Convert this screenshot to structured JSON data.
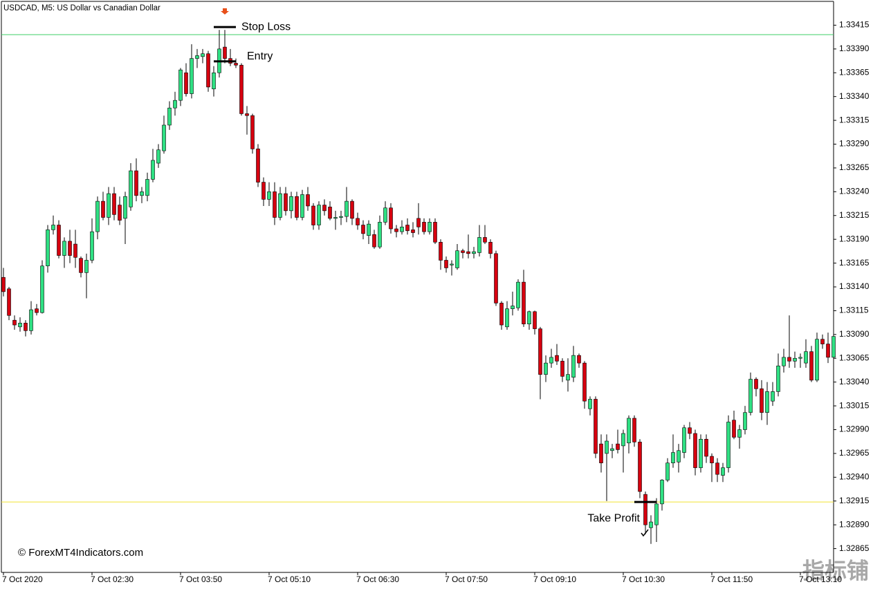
{
  "chart_data": {
    "type": "candlestick",
    "title": "USDCAD, M5:  US Dollar vs Canadian Dollar",
    "watermark": "© ForexMT4Indicators.com",
    "corner_mark": "指标铺",
    "up_color": "#2fe083",
    "down_color": "#d6000f",
    "ylim": [
      1.3284,
      1.3344
    ],
    "yticks": [
      1.32865,
      {
        "value": 1.3289,
        "label": "1.32890"
      },
      1.32915,
      {
        "value": 1.3294,
        "label": "1.32940"
      },
      1.32965,
      {
        "value": 1.3299,
        "label": "1.32990"
      },
      1.33015,
      {
        "value": 1.3304,
        "label": "1.33040"
      },
      1.33065,
      {
        "value": 1.3309,
        "label": "1.33090"
      },
      1.33115,
      {
        "value": 1.3314,
        "label": "1.33140"
      },
      1.33165,
      {
        "value": 1.3319,
        "label": "1.33190"
      },
      1.33215,
      {
        "value": 1.3324,
        "label": "1.33240"
      },
      1.33265,
      {
        "value": 1.3329,
        "label": "1.33290"
      },
      1.33315,
      {
        "value": 1.3334,
        "label": "1.33340"
      },
      1.33365,
      {
        "value": 1.3339,
        "label": "1.33390"
      },
      1.33415
    ],
    "categories": [
      "7 Oct 2020",
      null,
      null,
      null,
      null,
      null,
      null,
      null,
      null,
      null,
      null,
      null,
      null,
      null,
      null,
      null,
      "7 Oct 02:30",
      null,
      null,
      null,
      null,
      null,
      null,
      null,
      null,
      null,
      null,
      null,
      null,
      null,
      null,
      null,
      "7 Oct 03:50",
      null,
      null,
      null,
      null,
      null,
      null,
      null,
      null,
      null,
      null,
      null,
      null,
      null,
      null,
      null,
      "7 Oct 05:10",
      null,
      null,
      null,
      null,
      null,
      null,
      null,
      null,
      null,
      null,
      null,
      null,
      null,
      null,
      null,
      "7 Oct 06:30",
      null,
      null,
      null,
      null,
      null,
      null,
      null,
      null,
      null,
      null,
      null,
      null,
      null,
      null,
      null,
      "7 Oct 07:50",
      null,
      null,
      null,
      null,
      null,
      null,
      null,
      null,
      null,
      null,
      null,
      null,
      null,
      null,
      null,
      "7 Oct 09:10",
      null,
      null,
      null,
      null,
      null,
      null,
      null,
      null,
      null,
      null,
      null,
      null,
      null,
      null,
      null,
      "7 Oct 10:30",
      null,
      null,
      null,
      null,
      null,
      null,
      null,
      null,
      null,
      null,
      null,
      null,
      null,
      null,
      null,
      "7 Oct 11:50",
      null,
      null,
      null,
      null,
      null,
      null,
      null,
      null,
      null,
      null,
      null,
      null,
      null,
      null,
      null,
      "7 Oct 13:10",
      null,
      null,
      null,
      null,
      null,
      null
    ],
    "values": [
      [
        1.3315,
        1.3316,
        1.3313,
        1.33135
      ],
      [
        1.33138,
        1.3314,
        1.33105,
        1.3311
      ],
      [
        1.33105,
        1.3311,
        1.33095,
        1.331
      ],
      [
        1.33098,
        1.33108,
        1.33093,
        1.33102
      ],
      [
        1.33102,
        1.33105,
        1.33088,
        1.33094
      ],
      [
        1.33094,
        1.33125,
        1.3309,
        1.33116
      ],
      [
        1.33117,
        1.33122,
        1.3311,
        1.33113
      ],
      [
        1.33113,
        1.33168,
        1.33112,
        1.33162
      ],
      [
        1.33162,
        1.33205,
        1.33155,
        1.332
      ],
      [
        1.332,
        1.33215,
        1.33195,
        1.33205
      ],
      [
        1.33205,
        1.3321,
        1.3317,
        1.33173
      ],
      [
        1.33173,
        1.33192,
        1.3316,
        1.33188
      ],
      [
        1.33188,
        1.332,
        1.33165,
        1.33173
      ],
      [
        1.33185,
        1.332,
        1.3316,
        1.33171
      ],
      [
        1.3317,
        1.33172,
        1.3315,
        1.33155
      ],
      [
        1.33155,
        1.33175,
        1.33128,
        1.33168
      ],
      [
        1.33168,
        1.33212,
        1.33165,
        1.33198
      ],
      [
        1.33198,
        1.33235,
        1.3319,
        1.3323
      ],
      [
        1.3323,
        1.3324,
        1.3321,
        1.33213
      ],
      [
        1.33213,
        1.33245,
        1.33205,
        1.33238
      ],
      [
        1.33238,
        1.33245,
        1.3321,
        1.33216
      ],
      [
        1.33226,
        1.33235,
        1.33205,
        1.3321
      ],
      [
        1.33212,
        1.3324,
        1.33185,
        1.33235
      ],
      [
        1.33224,
        1.3327,
        1.3322,
        1.33262
      ],
      [
        1.33262,
        1.33275,
        1.3323,
        1.33236
      ],
      [
        1.33236,
        1.33245,
        1.33228,
        1.3324
      ],
      [
        1.33236,
        1.3326,
        1.3323,
        1.33253
      ],
      [
        1.33253,
        1.33285,
        1.3325,
        1.33273
      ],
      [
        1.3327,
        1.3329,
        1.33265,
        1.33284
      ],
      [
        1.33283,
        1.3332,
        1.3328,
        1.3331
      ],
      [
        1.3331,
        1.33335,
        1.33305,
        1.33328
      ],
      [
        1.33328,
        1.33345,
        1.3332,
        1.33336
      ],
      [
        1.33336,
        1.3337,
        1.3333,
        1.33368
      ],
      [
        1.33365,
        1.33375,
        1.3334,
        1.33343
      ],
      [
        1.33343,
        1.33395,
        1.33338,
        1.3338
      ],
      [
        1.3338,
        1.3339,
        1.3337,
        1.33383
      ],
      [
        1.33382,
        1.3339,
        1.33375,
        1.33385
      ],
      [
        1.33385,
        1.33388,
        1.33345,
        1.3335
      ],
      [
        1.33348,
        1.33372,
        1.3334,
        1.33365
      ],
      [
        1.33365,
        1.3341,
        1.3336,
        1.3339
      ],
      [
        1.33392,
        1.3341,
        1.33375,
        1.3338
      ],
      [
        1.3338,
        1.3339,
        1.33372,
        1.33375
      ],
      [
        1.33375,
        1.3338,
        1.3337,
        1.33373
      ],
      [
        1.33373,
        1.33375,
        1.3332,
        1.33322
      ],
      [
        1.33322,
        1.3333,
        1.333,
        1.3332
      ],
      [
        1.3332,
        1.33322,
        1.3328,
        1.33285
      ],
      [
        1.33285,
        1.3329,
        1.33245,
        1.3325
      ],
      [
        1.3325,
        1.33255,
        1.33225,
        1.33232
      ],
      [
        1.33232,
        1.3325,
        1.33225,
        1.3324
      ],
      [
        1.3324,
        1.3325,
        1.33205,
        1.33213
      ],
      [
        1.33213,
        1.33245,
        1.3321,
        1.33238
      ],
      [
        1.33238,
        1.33245,
        1.33215,
        1.3322
      ],
      [
        1.3322,
        1.3324,
        1.33212,
        1.33235
      ],
      [
        1.33235,
        1.3324,
        1.3321,
        1.33213
      ],
      [
        1.33213,
        1.33242,
        1.3321,
        1.33237
      ],
      [
        1.33237,
        1.33245,
        1.3322,
        1.33225
      ],
      [
        1.33225,
        1.33228,
        1.332,
        1.33205
      ],
      [
        1.33205,
        1.3323,
        1.332,
        1.33226
      ],
      [
        1.33226,
        1.33232,
        1.33215,
        1.3322
      ],
      [
        1.33224,
        1.3323,
        1.3321,
        1.33212
      ],
      [
        1.33212,
        1.3322,
        1.332,
        1.33213
      ],
      [
        1.33213,
        1.3322,
        1.33205,
        1.33214
      ],
      [
        1.33214,
        1.33245,
        1.33208,
        1.3323
      ],
      [
        1.3323,
        1.33232,
        1.33205,
        1.33212
      ],
      [
        1.33212,
        1.33218,
        1.332,
        1.33205
      ],
      [
        1.33205,
        1.3321,
        1.3319,
        1.33196
      ],
      [
        1.33194,
        1.3321,
        1.33185,
        1.33206
      ],
      [
        1.33195,
        1.332,
        1.3318,
        1.33182
      ],
      [
        1.33182,
        1.33215,
        1.3318,
        1.33208
      ],
      [
        1.33208,
        1.3323,
        1.33205,
        1.33223
      ],
      [
        1.33223,
        1.33228,
        1.33196,
        1.33201
      ],
      [
        1.33201,
        1.33205,
        1.33192,
        1.33198
      ],
      [
        1.33198,
        1.3321,
        1.33195,
        1.33203
      ],
      [
        1.33205,
        1.33212,
        1.33195,
        1.33199
      ],
      [
        1.332,
        1.33208,
        1.33192,
        1.33197
      ],
      [
        1.33212,
        1.33228,
        1.33195,
        1.33203
      ],
      [
        1.33208,
        1.33212,
        1.33195,
        1.33198
      ],
      [
        1.33198,
        1.33212,
        1.33195,
        1.33208
      ],
      [
        1.33208,
        1.33212,
        1.33185,
        1.33187
      ],
      [
        1.33187,
        1.3319,
        1.33158,
        1.33168
      ],
      [
        1.33168,
        1.33172,
        1.33155,
        1.3316
      ],
      [
        1.33163,
        1.33168,
        1.33152,
        1.33164
      ],
      [
        1.3316,
        1.33185,
        1.33158,
        1.33178
      ],
      [
        1.33178,
        1.3318,
        1.3317,
        1.33176
      ],
      [
        1.33177,
        1.33195,
        1.3317,
        1.33175
      ],
      [
        1.33175,
        1.33182,
        1.3317,
        1.33177
      ],
      [
        1.33176,
        1.33205,
        1.33172,
        1.33192
      ],
      [
        1.33192,
        1.33205,
        1.33185,
        1.33187
      ],
      [
        1.33187,
        1.3319,
        1.3317,
        1.33175
      ],
      [
        1.33175,
        1.33178,
        1.3312,
        1.33123
      ],
      [
        1.33123,
        1.33125,
        1.33095,
        1.331
      ],
      [
        1.33098,
        1.33125,
        1.33095,
        1.33117
      ],
      [
        1.33117,
        1.33135,
        1.3311,
        1.3312
      ],
      [
        1.33118,
        1.33148,
        1.33115,
        1.33145
      ],
      [
        1.33145,
        1.33158,
        1.33098,
        1.33101
      ],
      [
        1.33101,
        1.33115,
        1.33095,
        1.33114
      ],
      [
        1.33114,
        1.33115,
        1.3309,
        1.33096
      ],
      [
        1.33096,
        1.33098,
        1.33022,
        1.33048
      ],
      [
        1.33048,
        1.33068,
        1.3304,
        1.3306
      ],
      [
        1.3306,
        1.33075,
        1.33055,
        1.33066
      ],
      [
        1.33068,
        1.3308,
        1.33058,
        1.33062
      ],
      [
        1.33062,
        1.33065,
        1.3304,
        1.33046
      ],
      [
        1.33042,
        1.33065,
        1.3303,
        1.33048
      ],
      [
        1.33045,
        1.33078,
        1.3304,
        1.33068
      ],
      [
        1.33068,
        1.3307,
        1.33055,
        1.3306
      ],
      [
        1.3306,
        1.33062,
        1.33012,
        1.3302
      ],
      [
        1.33012,
        1.33025,
        1.33005,
        1.33022
      ],
      [
        1.33022,
        1.33025,
        1.3296,
        1.32965
      ],
      [
        1.32975,
        1.32985,
        1.32945,
        1.32955
      ],
      [
        1.32965,
        1.32985,
        1.32915,
        1.32978
      ],
      [
        1.32968,
        1.32975,
        1.3296,
        1.3297
      ],
      [
        1.32975,
        1.3299,
        1.32965,
        1.32969
      ],
      [
        1.32973,
        1.3299,
        1.32945,
        1.32986
      ],
      [
        1.32976,
        1.33005,
        1.32965,
        1.33002
      ],
      [
        1.33002,
        1.33005,
        1.32972,
        1.32977
      ],
      [
        1.32977,
        1.3298,
        1.32918,
        1.32925
      ],
      [
        1.32922,
        1.32925,
        1.3288,
        1.3289
      ],
      [
        1.32887,
        1.329,
        1.3287,
        1.32893
      ],
      [
        1.3289,
        1.32918,
        1.32872,
        1.32912
      ],
      [
        1.32912,
        1.32938,
        1.32905,
        1.32937
      ],
      [
        1.32937,
        1.3296,
        1.32935,
        1.32955
      ],
      [
        1.32955,
        1.32985,
        1.3295,
        1.32966
      ],
      [
        1.32956,
        1.32975,
        1.32945,
        1.32968
      ],
      [
        1.32966,
        1.32995,
        1.3296,
        1.32992
      ],
      [
        1.32992,
        1.32998,
        1.3298,
        1.32986
      ],
      [
        1.32986,
        1.3299,
        1.32942,
        1.3295
      ],
      [
        1.3295,
        1.32985,
        1.32945,
        1.3298
      ],
      [
        1.3298,
        1.32985,
        1.32955,
        1.32962
      ],
      [
        1.32962,
        1.32965,
        1.32935,
        1.32955
      ],
      [
        1.32955,
        1.3296,
        1.32935,
        1.32943
      ],
      [
        1.32942,
        1.32955,
        1.32935,
        1.3295
      ],
      [
        1.3295,
        1.33005,
        1.32945,
        1.32998
      ],
      [
        1.33,
        1.3301,
        1.3298,
        1.32982
      ],
      [
        1.32982,
        1.32995,
        1.3297,
        1.3299
      ],
      [
        1.3299,
        1.33015,
        1.32985,
        1.33008
      ],
      [
        1.33008,
        1.3305,
        1.33005,
        1.33043
      ],
      [
        1.33043,
        1.33045,
        1.33025,
        1.33033
      ],
      [
        1.33033,
        1.33042,
        1.33,
        1.33008
      ],
      [
        1.33008,
        1.3304,
        1.32995,
        1.3303
      ],
      [
        1.3302,
        1.3304,
        1.33015,
        1.3303
      ],
      [
        1.3303,
        1.3307,
        1.33025,
        1.33057
      ],
      [
        1.33057,
        1.33075,
        1.3305,
        1.33066
      ],
      [
        1.33066,
        1.3311,
        1.33055,
        1.33062
      ],
      [
        1.33062,
        1.33072,
        1.33055,
        1.33065
      ],
      [
        1.33065,
        1.3307,
        1.33055,
        1.33066
      ],
      [
        1.3306,
        1.33085,
        1.33055,
        1.33072
      ],
      [
        1.33072,
        1.33078,
        1.3304,
        1.33042
      ],
      [
        1.33042,
        1.33092,
        1.3304,
        1.33085
      ],
      [
        1.33085,
        1.3309,
        1.33075,
        1.3308
      ],
      [
        1.3308,
        1.33092,
        1.3306,
        1.33066
      ],
      [
        1.33066,
        1.331,
        1.33062,
        1.33088
      ]
    ],
    "hlines": [
      {
        "value": 1.33405,
        "color": "#3ccf66"
      },
      {
        "value": 1.32914,
        "color": "#f2e233"
      }
    ],
    "annotations": [
      {
        "text": "Stop Loss",
        "value": 1.33413,
        "index": 40
      },
      {
        "text": "Entry",
        "value": 1.33377,
        "index": 40
      },
      {
        "text": "Take Profit",
        "value": 1.32914,
        "index": 116
      }
    ]
  }
}
